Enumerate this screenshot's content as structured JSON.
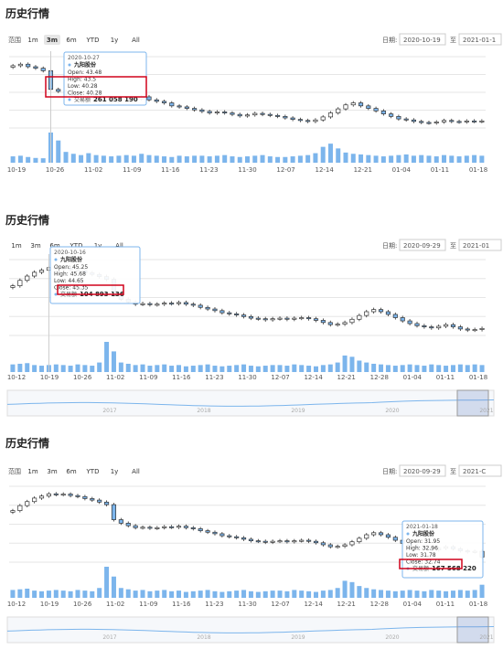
{
  "charts": [
    {
      "title": "历史行情",
      "range_label": "范围",
      "ranges": [
        "1m",
        "3m",
        "6m",
        "YTD",
        "1y",
        "All"
      ],
      "active_range": "3m",
      "date_label": "日期:",
      "date_from": "2020-10-19",
      "date_sep": "至",
      "date_to": "2021-01-1",
      "x_ticks": [
        "10-19",
        "10-26",
        "11-02",
        "11-09",
        "11-16",
        "11-23",
        "11-30",
        "12-07",
        "12-14",
        "12-21",
        "01-04",
        "01-11",
        "01-18"
      ],
      "tooltip": {
        "date": "2020-10-27",
        "name": "九阳股份",
        "lines": [
          "Open: 43.48",
          "High: 43.5",
          "Low: 40.28",
          "Close: 40.28"
        ],
        "volume_label": "交易额",
        "volume": "261 058 190",
        "highlighted": [
          "High: 43.5",
          "Low: 40.28",
          "Close: 40.28"
        ]
      },
      "navigator": null
    },
    {
      "title": "历史行情",
      "range_label": "",
      "ranges": [
        "1m",
        "3m",
        "6m",
        "YTD",
        "1y",
        "All"
      ],
      "active_range": "",
      "date_label": "日期:",
      "date_from": "2020-09-29",
      "date_sep": "至",
      "date_to": "2021-01",
      "x_ticks": [
        "10-12",
        "10-19",
        "10-26",
        "11-02",
        "11-09",
        "11-16",
        "11-23",
        "11-30",
        "12-07",
        "12-14",
        "12-21",
        "12-28",
        "01-04",
        "01-11",
        "01-18"
      ],
      "tooltip": {
        "date": "2020-10-16",
        "name": "九阳股份",
        "lines": [
          "Open: 45.25",
          "High: 45.68",
          "Low: 44.65",
          "Close: 45.35"
        ],
        "volume_label": "交易额",
        "volume": "104 893 136",
        "highlighted": [
          "Close: 45.35"
        ]
      },
      "navigator": {
        "labels": [
          "2017",
          "2018",
          "2019",
          "2020",
          "2021"
        ]
      }
    },
    {
      "title": "历史行情",
      "range_label": "范围",
      "ranges": [
        "1m",
        "3m",
        "6m",
        "YTD",
        "1y",
        "All"
      ],
      "active_range": "",
      "date_label": "日期:",
      "date_from": "2020-09-29",
      "date_sep": "至",
      "date_to": "2021-C",
      "x_ticks": [
        "10-12",
        "10-19",
        "10-26",
        "11-02",
        "11-09",
        "11-16",
        "11-23",
        "11-30",
        "12-07",
        "12-14",
        "12-21",
        "12-28",
        "01-04",
        "01-11",
        "01-18"
      ],
      "tooltip": {
        "date": "2021-01-18",
        "name": "九阳股份",
        "lines": [
          "Open: 31.95",
          "High: 32.96",
          "Low: 31.78",
          "Close: 32.74"
        ],
        "volume_label": "交易额",
        "volume": "167 568 220",
        "highlighted": [
          "Close: 32.74"
        ]
      },
      "navigator": {
        "labels": [
          "2017",
          "2018",
          "2019",
          "2020",
          "2021"
        ]
      }
    }
  ],
  "chart_data": [
    {
      "type": "candlestick",
      "title": "历史行情",
      "stock": "九阳股份",
      "x_ticks": [
        "10-19",
        "10-26",
        "11-02",
        "11-09",
        "11-16",
        "11-23",
        "11-30",
        "12-07",
        "12-14",
        "12-21",
        "01-04",
        "01-11",
        "01-18"
      ],
      "close": [
        45.0,
        45.3,
        44.8,
        44.5,
        44.0,
        40.28,
        39.9,
        39.3,
        38.8,
        38.3,
        38.7,
        38.2,
        38.0,
        37.8,
        38.2,
        38.6,
        38.4,
        38.8,
        38.2,
        37.9,
        37.6,
        37.0,
        36.8,
        36.5,
        36.2,
        35.9,
        35.6,
        35.8,
        35.6,
        35.3,
        35.0,
        35.2,
        35.5,
        35.3,
        35.1,
        34.9,
        34.6,
        34.3,
        34.1,
        33.9,
        34.2,
        34.8,
        35.6,
        36.4,
        37.2,
        37.6,
        37.0,
        36.5,
        36.0,
        35.4,
        34.9,
        34.4,
        34.2,
        33.9,
        33.7,
        33.6,
        33.8,
        34.1,
        33.9,
        33.8,
        34.0,
        33.9,
        34.0
      ],
      "volume": [
        20,
        22,
        18,
        15,
        14,
        95,
        70,
        34,
        28,
        24,
        30,
        24,
        22,
        20,
        22,
        24,
        22,
        28,
        24,
        22,
        20,
        18,
        22,
        20,
        22,
        22,
        20,
        22,
        24,
        20,
        18,
        20,
        22,
        24,
        20,
        18,
        18,
        20,
        22,
        24,
        30,
        50,
        60,
        45,
        32,
        28,
        26,
        24,
        22,
        20,
        22,
        24,
        26,
        22,
        24,
        22,
        20,
        24,
        22,
        20,
        22,
        24,
        22
      ],
      "tooltip": {
        "date": "2020-10-27",
        "open": 43.48,
        "high": 43.5,
        "low": 40.28,
        "close": 40.28,
        "volume": 261058190
      }
    },
    {
      "type": "candlestick",
      "title": "历史行情",
      "stock": "九阳股份",
      "x_ticks": [
        "10-12",
        "10-19",
        "10-26",
        "11-02",
        "11-09",
        "11-16",
        "11-23",
        "11-30",
        "12-07",
        "12-14",
        "12-21",
        "12-28",
        "01-04",
        "01-11",
        "01-18"
      ],
      "close": [
        42.0,
        43.0,
        43.8,
        44.5,
        44.9,
        45.35,
        45.2,
        45.3,
        45.0,
        44.8,
        44.4,
        44.1,
        43.7,
        43.2,
        40.2,
        39.5,
        39.0,
        38.6,
        38.7,
        38.5,
        38.6,
        38.8,
        38.7,
        38.9,
        38.6,
        38.4,
        38.0,
        37.7,
        37.4,
        37.0,
        36.8,
        36.6,
        36.3,
        36.0,
        35.9,
        35.7,
        35.9,
        36.0,
        35.8,
        36.0,
        36.1,
        35.9,
        35.6,
        35.2,
        34.8,
        34.9,
        35.2,
        35.8,
        36.5,
        37.2,
        37.6,
        37.2,
        36.7,
        36.1,
        35.5,
        35.0,
        34.6,
        34.4,
        34.2,
        34.5,
        34.8,
        34.4,
        34.0,
        33.8,
        33.9,
        34.1
      ],
      "volume": [
        24,
        26,
        28,
        22,
        20,
        22,
        24,
        22,
        20,
        24,
        22,
        20,
        30,
        95,
        65,
        30,
        26,
        22,
        24,
        20,
        22,
        24,
        20,
        22,
        18,
        20,
        22,
        24,
        20,
        18,
        20,
        22,
        24,
        20,
        18,
        20,
        22,
        22,
        20,
        24,
        22,
        20,
        18,
        22,
        24,
        30,
        52,
        48,
        36,
        30,
        26,
        24,
        22,
        20,
        22,
        24,
        22,
        20,
        24,
        22,
        20,
        22,
        24,
        22,
        24,
        22
      ],
      "tooltip": {
        "date": "2020-10-16",
        "open": 45.25,
        "high": 45.68,
        "low": 44.65,
        "close": 45.35,
        "volume": 104893136
      }
    },
    {
      "type": "candlestick",
      "title": "历史行情",
      "stock": "九阳股份",
      "x_ticks": [
        "10-12",
        "10-19",
        "10-26",
        "11-02",
        "11-09",
        "11-16",
        "11-23",
        "11-30",
        "12-07",
        "12-14",
        "12-21",
        "12-28",
        "01-04",
        "01-11",
        "01-18"
      ],
      "close": [
        42.0,
        43.0,
        43.8,
        44.5,
        44.9,
        45.35,
        45.2,
        45.3,
        45.0,
        44.8,
        44.4,
        44.1,
        43.7,
        43.2,
        40.2,
        39.5,
        39.0,
        38.6,
        38.7,
        38.5,
        38.6,
        38.8,
        38.7,
        38.9,
        38.6,
        38.4,
        38.0,
        37.7,
        37.4,
        37.0,
        36.8,
        36.6,
        36.3,
        36.0,
        35.9,
        35.7,
        35.9,
        36.0,
        35.8,
        36.0,
        36.1,
        35.9,
        35.6,
        35.2,
        34.8,
        34.9,
        35.2,
        35.8,
        36.5,
        37.2,
        37.6,
        37.2,
        36.7,
        36.1,
        35.5,
        35.0,
        34.6,
        34.4,
        34.2,
        34.5,
        34.8,
        34.4,
        34.0,
        33.8,
        33.9,
        32.74
      ],
      "volume": [
        24,
        26,
        28,
        22,
        20,
        22,
        24,
        22,
        20,
        24,
        22,
        20,
        30,
        95,
        65,
        30,
        26,
        22,
        24,
        20,
        22,
        24,
        20,
        22,
        18,
        20,
        22,
        24,
        20,
        18,
        20,
        22,
        24,
        20,
        18,
        20,
        22,
        22,
        20,
        24,
        22,
        20,
        18,
        22,
        24,
        30,
        52,
        48,
        36,
        30,
        26,
        24,
        22,
        20,
        22,
        24,
        22,
        20,
        24,
        22,
        20,
        22,
        24,
        22,
        24,
        40
      ],
      "tooltip": {
        "date": "2021-01-18",
        "open": 31.95,
        "high": 32.96,
        "low": 31.78,
        "close": 32.74,
        "volume": 167568220
      }
    }
  ]
}
